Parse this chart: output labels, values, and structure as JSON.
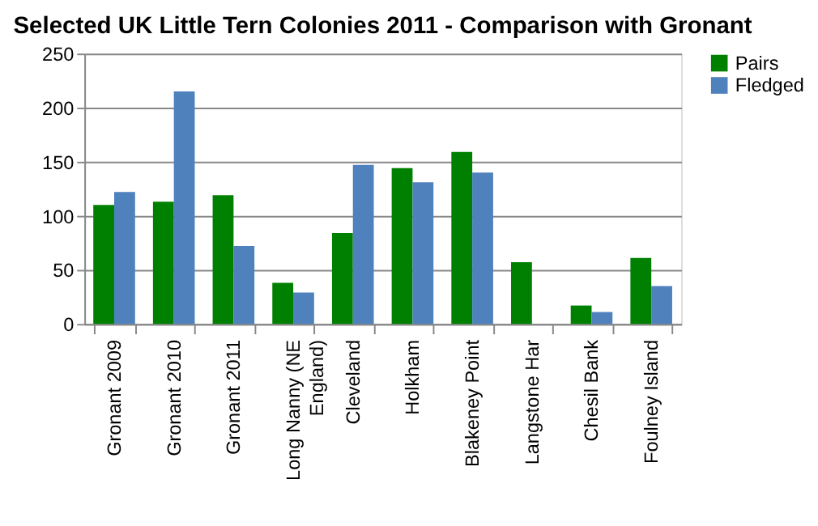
{
  "chart_data": {
    "type": "bar",
    "title": "Selected UK Little Tern Colonies 2011 - Comparison with Gronant",
    "categories": [
      "Gronant 2009",
      "Gronant 2010",
      "Gronant 2011",
      "Long Nanny (NE England)",
      "Cleveland",
      "Holkham",
      "Blakeney Point",
      "Langstone Har",
      "Chesil Bank",
      "Foulney Island"
    ],
    "series": [
      {
        "name": "Pairs",
        "color": "#008000",
        "values": [
          110,
          113,
          119,
          38,
          84,
          144,
          159,
          57,
          17,
          61
        ]
      },
      {
        "name": "Fledged",
        "color": "#4f81bd",
        "values": [
          122,
          215,
          72,
          29,
          147,
          131,
          140,
          0,
          11,
          35
        ]
      }
    ],
    "ylim": [
      0,
      250
    ],
    "yticks": [
      0,
      50,
      100,
      150,
      200,
      250
    ],
    "grid": "y",
    "legend": "right"
  }
}
